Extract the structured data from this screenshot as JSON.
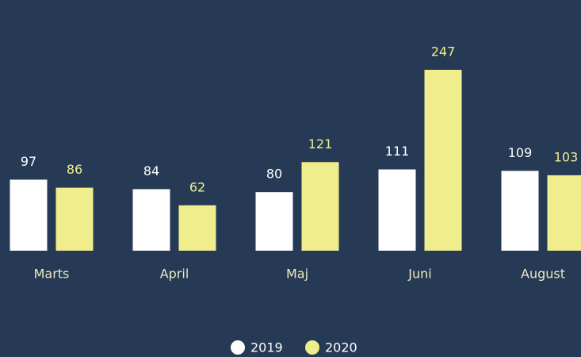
{
  "chart_data": {
    "type": "bar",
    "categories": [
      "Marts",
      "April",
      "Maj",
      "Juni",
      "August"
    ],
    "series": [
      {
        "name": "2019",
        "color": "#ffffff",
        "values": [
          97,
          84,
          80,
          111,
          109
        ]
      },
      {
        "name": "2020",
        "color": "#f0ee8c",
        "values": [
          86,
          62,
          121,
          247,
          103
        ]
      }
    ]
  }
}
